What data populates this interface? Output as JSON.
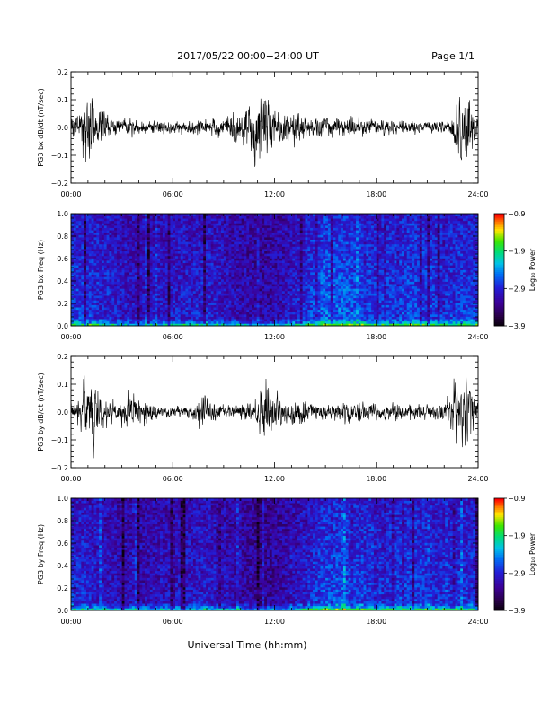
{
  "header": {
    "title": "2017/05/22  00:00−24:00 UT",
    "page_label": "Page 1/1"
  },
  "footer": {
    "xlabel": "Universal Time (hh:mm)"
  },
  "chart_data": [
    {
      "type": "line",
      "ylabel": "PG3 bx dB/dt (nT/sec)",
      "xlim": [
        0,
        24
      ],
      "ylim": [
        -0.2,
        0.2
      ],
      "x_tick_labels": [
        "00:00",
        "06:00",
        "12:00",
        "18:00",
        "24:00"
      ],
      "y_tick_labels": [
        "−0.2",
        "−0.1",
        "0.0",
        "0.1",
        "0.2"
      ],
      "series_color": "#000000",
      "envelope": {
        "hours": [
          0,
          0.5,
          0.8,
          1.0,
          1.3,
          1.6,
          2.0,
          2.5,
          3.0,
          3.5,
          4.0,
          5.0,
          6.0,
          7.0,
          8.0,
          9.0,
          9.5,
          10.0,
          10.5,
          11.0,
          11.5,
          12.0,
          12.3,
          12.6,
          13.0,
          13.5,
          14.0,
          15.0,
          16.0,
          17.0,
          18.0,
          19.0,
          20.0,
          21.0,
          22.0,
          22.5,
          22.8,
          23.0,
          23.3,
          23.6,
          24.0
        ],
        "amplitude": [
          0.06,
          0.08,
          0.16,
          0.2,
          0.2,
          0.14,
          0.08,
          0.06,
          0.05,
          0.045,
          0.04,
          0.035,
          0.04,
          0.035,
          0.04,
          0.05,
          0.07,
          0.09,
          0.12,
          0.16,
          0.2,
          0.12,
          0.1,
          0.09,
          0.08,
          0.07,
          0.05,
          0.045,
          0.05,
          0.045,
          0.04,
          0.035,
          0.035,
          0.03,
          0.04,
          0.08,
          0.2,
          0.2,
          0.2,
          0.15,
          0.06
        ]
      }
    },
    {
      "type": "heatmap",
      "ylabel": "PG3 bx Freq (Hz)",
      "xlim": [
        0,
        24
      ],
      "ylim": [
        0,
        1.0
      ],
      "x_tick_labels": [
        "00:00",
        "06:00",
        "12:00",
        "18:00",
        "24:00"
      ],
      "y_tick_labels": [
        "0.0",
        "0.2",
        "0.4",
        "0.6",
        "0.8",
        "1.0"
      ],
      "colorbar": {
        "label": "Log₁₀ Power",
        "range": [
          -3.9,
          -0.9
        ],
        "tick_labels": [
          "−0.9",
          "−1.9",
          "−2.9",
          "−3.9"
        ]
      },
      "activity": {
        "hours": [
          0,
          1,
          2,
          3,
          4,
          5,
          6,
          7,
          8,
          9,
          10,
          11,
          12,
          13,
          14,
          15,
          16,
          17,
          18,
          19,
          20,
          21,
          22,
          23,
          24
        ],
        "level": [
          0.55,
          0.5,
          0.4,
          0.3,
          0.28,
          0.3,
          0.35,
          0.35,
          0.4,
          0.3,
          0.22,
          0.12,
          0.15,
          0.3,
          0.5,
          0.72,
          0.68,
          0.62,
          0.48,
          0.52,
          0.58,
          0.52,
          0.48,
          0.52,
          0.5
        ]
      }
    },
    {
      "type": "line",
      "ylabel": "PG3 by dB/dt (nT/sec)",
      "xlim": [
        0,
        24
      ],
      "ylim": [
        -0.2,
        0.2
      ],
      "x_tick_labels": [
        "00:00",
        "06:00",
        "12:00",
        "18:00",
        "24:00"
      ],
      "y_tick_labels": [
        "−0.2",
        "−0.1",
        "0.0",
        "0.1",
        "0.2"
      ],
      "series_color": "#000000",
      "envelope": {
        "hours": [
          0,
          0.5,
          0.8,
          1.0,
          1.3,
          1.6,
          2.0,
          2.5,
          3.0,
          3.5,
          4.0,
          4.5,
          5.0,
          6.0,
          7.0,
          7.5,
          7.8,
          8.0,
          8.5,
          9.0,
          10.0,
          10.5,
          11.0,
          11.5,
          12.0,
          12.5,
          13.0,
          13.5,
          14.0,
          14.5,
          15.0,
          16.0,
          17.0,
          18.0,
          19.0,
          20.0,
          21.0,
          22.0,
          22.5,
          22.8,
          23.0,
          23.3,
          23.6,
          24.0
        ],
        "amplitude": [
          0.05,
          0.06,
          0.14,
          0.2,
          0.2,
          0.12,
          0.07,
          0.05,
          0.07,
          0.09,
          0.07,
          0.08,
          0.04,
          0.035,
          0.035,
          0.06,
          0.13,
          0.08,
          0.04,
          0.03,
          0.04,
          0.06,
          0.1,
          0.14,
          0.08,
          0.06,
          0.05,
          0.08,
          0.06,
          0.05,
          0.04,
          0.05,
          0.05,
          0.045,
          0.045,
          0.045,
          0.04,
          0.05,
          0.1,
          0.2,
          0.2,
          0.2,
          0.15,
          0.05
        ]
      }
    },
    {
      "type": "heatmap",
      "ylabel": "PG3 by Freq (Hz)",
      "xlim": [
        0,
        24
      ],
      "ylim": [
        0,
        1.0
      ],
      "x_tick_labels": [
        "00:00",
        "06:00",
        "12:00",
        "18:00",
        "24:00"
      ],
      "y_tick_labels": [
        "0.0",
        "0.2",
        "0.4",
        "0.6",
        "0.8",
        "1.0"
      ],
      "colorbar": {
        "label": "Log₁₀ Power",
        "range": [
          -3.9,
          -0.9
        ],
        "tick_labels": [
          "−0.9",
          "−1.9",
          "−2.9",
          "−3.9"
        ]
      },
      "activity": {
        "hours": [
          0,
          1,
          2,
          3,
          4,
          5,
          6,
          7,
          8,
          9,
          10,
          11,
          12,
          13,
          14,
          15,
          16,
          17,
          18,
          19,
          20,
          21,
          22,
          23,
          24
        ],
        "level": [
          0.45,
          0.4,
          0.3,
          0.22,
          0.2,
          0.25,
          0.28,
          0.3,
          0.35,
          0.25,
          0.15,
          0.08,
          0.1,
          0.22,
          0.4,
          0.62,
          0.6,
          0.55,
          0.42,
          0.5,
          0.55,
          0.48,
          0.44,
          0.48,
          0.45
        ]
      }
    }
  ]
}
